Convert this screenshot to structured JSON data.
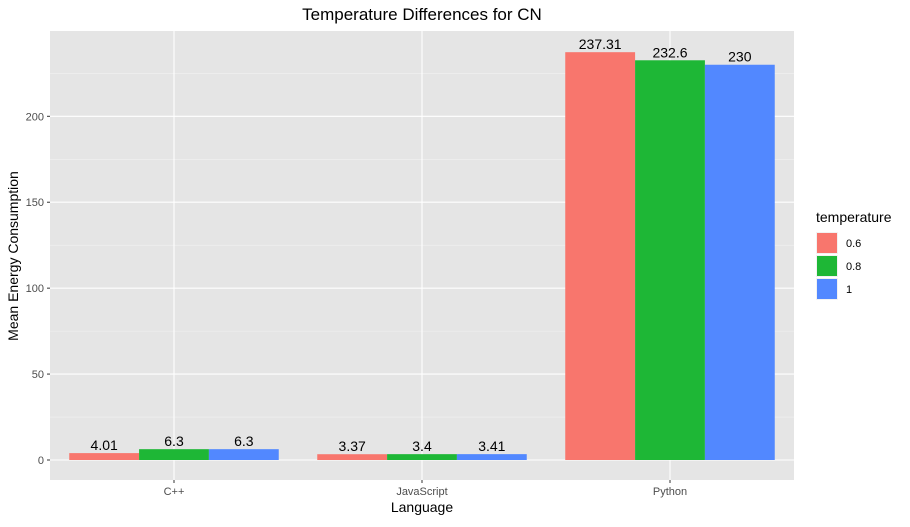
{
  "chart_data": {
    "type": "bar",
    "title": "Temperature Differences for  CN",
    "xlabel": "Language",
    "ylabel": "Mean Energy Consumption",
    "categories": [
      "C++",
      "JavaScript",
      "Python"
    ],
    "series": [
      {
        "name": "0.6",
        "color": "#F8766D",
        "values": [
          4.01,
          3.37,
          237.31
        ],
        "labels": [
          "4.01",
          "3.37",
          "237.31"
        ]
      },
      {
        "name": "0.8",
        "color": "#1EB736",
        "values": [
          6.3,
          3.4,
          232.6
        ],
        "labels": [
          "6.3",
          "3.4",
          "232.6"
        ]
      },
      {
        "name": "1",
        "color": "#5288FF",
        "values": [
          6.3,
          3.41,
          230
        ],
        "labels": [
          "6.3",
          "3.41",
          "230"
        ]
      }
    ],
    "yticks": [
      0,
      50,
      100,
      150,
      200
    ],
    "ytick_labels": [
      "0",
      "50",
      "100",
      "150",
      "200"
    ],
    "ylim": [
      -12,
      250
    ],
    "legend": {
      "title": "temperature",
      "position": "right"
    },
    "grid": true,
    "background": "#E5E5E5"
  }
}
